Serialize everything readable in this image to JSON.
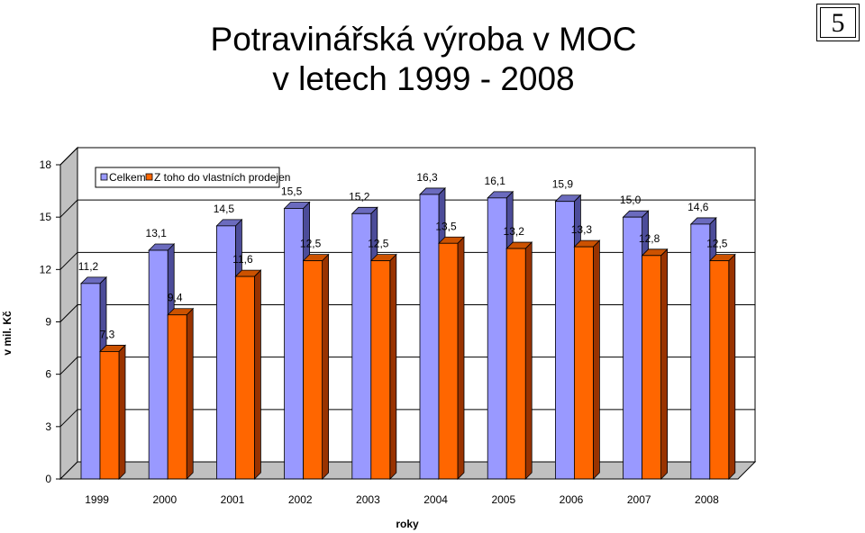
{
  "slide": {
    "title_line1": "Potravinářská výroba v MOC",
    "title_line2": "v letech 1999 - 2008",
    "number": "5"
  },
  "chart_data": {
    "type": "bar",
    "categories": [
      "1999",
      "2000",
      "2001",
      "2002",
      "2003",
      "2004",
      "2005",
      "2006",
      "2007",
      "2008"
    ],
    "series": [
      {
        "name": "Celkem",
        "values": [
          11.2,
          13.1,
          14.5,
          15.5,
          15.2,
          16.3,
          16.1,
          15.9,
          15.0,
          14.6
        ],
        "labels": [
          "11,2",
          "13,1",
          "14,5",
          "15,5",
          "15,2",
          "16,3",
          "16,1",
          "15,9",
          "15,0",
          "14,6"
        ],
        "color": "#9999FF",
        "side_color": "#4C4C99",
        "top_color": "#6B6BBE"
      },
      {
        "name": "Z toho do vlastních prodejen",
        "values": [
          7.3,
          9.4,
          11.6,
          12.5,
          12.5,
          13.5,
          13.2,
          13.3,
          12.8,
          12.5
        ],
        "labels": [
          "7,3",
          "9,4",
          "11,6",
          "12,5",
          "12,5",
          "13,5",
          "13,2",
          "13,3",
          "12,8",
          "12,5"
        ],
        "color": "#FF6600",
        "side_color": "#993300",
        "top_color": "#CC5200"
      }
    ],
    "yticks": [
      "0",
      "3",
      "6",
      "9",
      "12",
      "15",
      "18"
    ],
    "ylim": [
      0,
      18
    ],
    "xlabel": "roky",
    "ylabel": "v mil. Kč",
    "legend_position": "top-left"
  }
}
